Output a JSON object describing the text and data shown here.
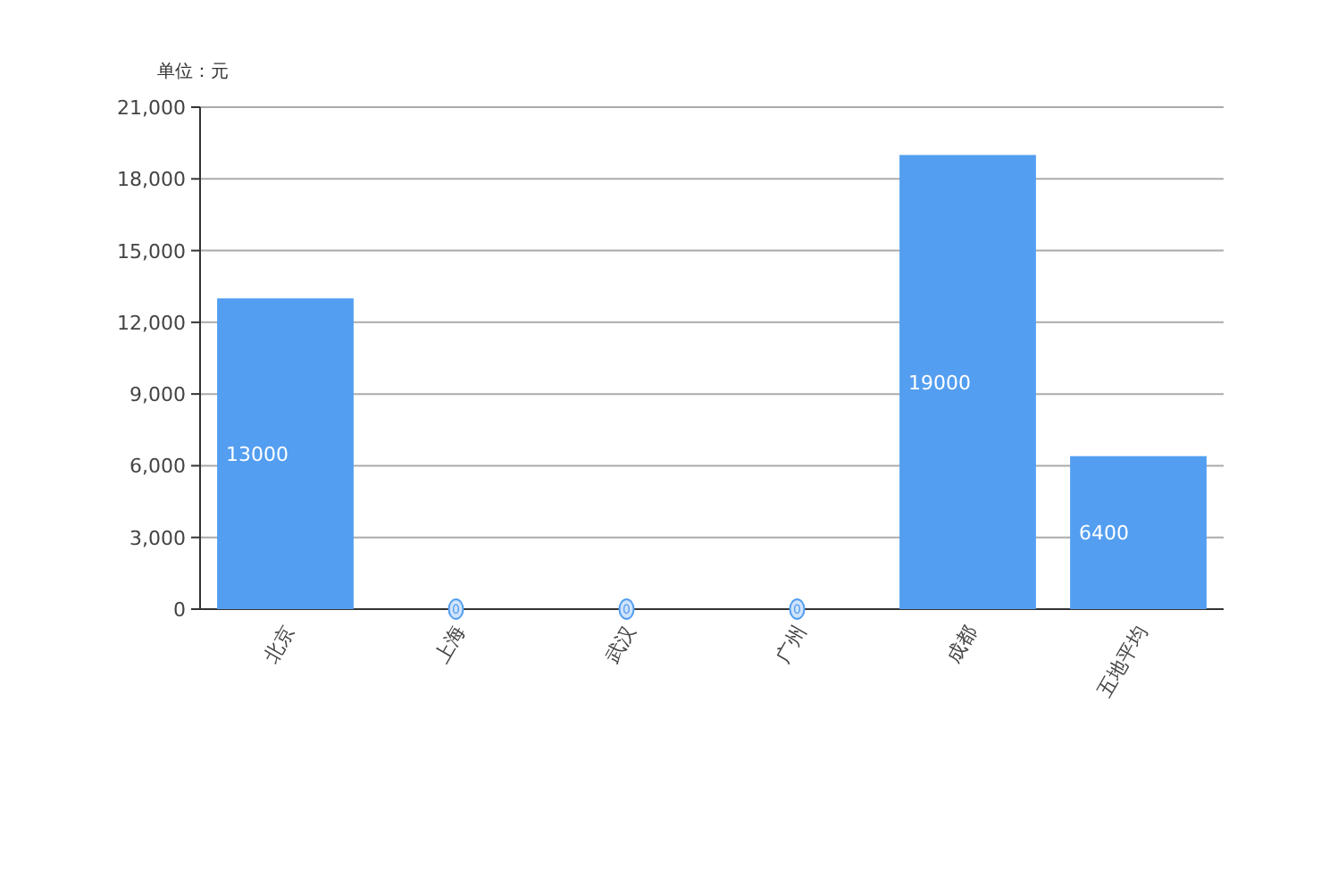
{
  "chart_data": {
    "type": "bar",
    "ylabel": "单位：元",
    "categories": [
      "北京",
      "上海",
      "武汉",
      "广州",
      "成都",
      "五地平均"
    ],
    "series": [
      {
        "color": "#539ef0",
        "values": [
          13000,
          0,
          0,
          0,
          19000,
          6400
        ]
      }
    ],
    "ylim": [
      0,
      21000
    ],
    "yticks": [
      {
        "value": 0,
        "label": "0"
      },
      {
        "value": 3000,
        "label": "3,000"
      },
      {
        "value": 6000,
        "label": "6,000"
      },
      {
        "value": 9000,
        "label": "9,000"
      },
      {
        "value": 12000,
        "label": "12,000"
      },
      {
        "value": 15000,
        "label": "15,000"
      },
      {
        "value": 18000,
        "label": "18,000"
      },
      {
        "value": 21000,
        "label": "21,000"
      }
    ],
    "grid": "y",
    "data_labels": true
  }
}
